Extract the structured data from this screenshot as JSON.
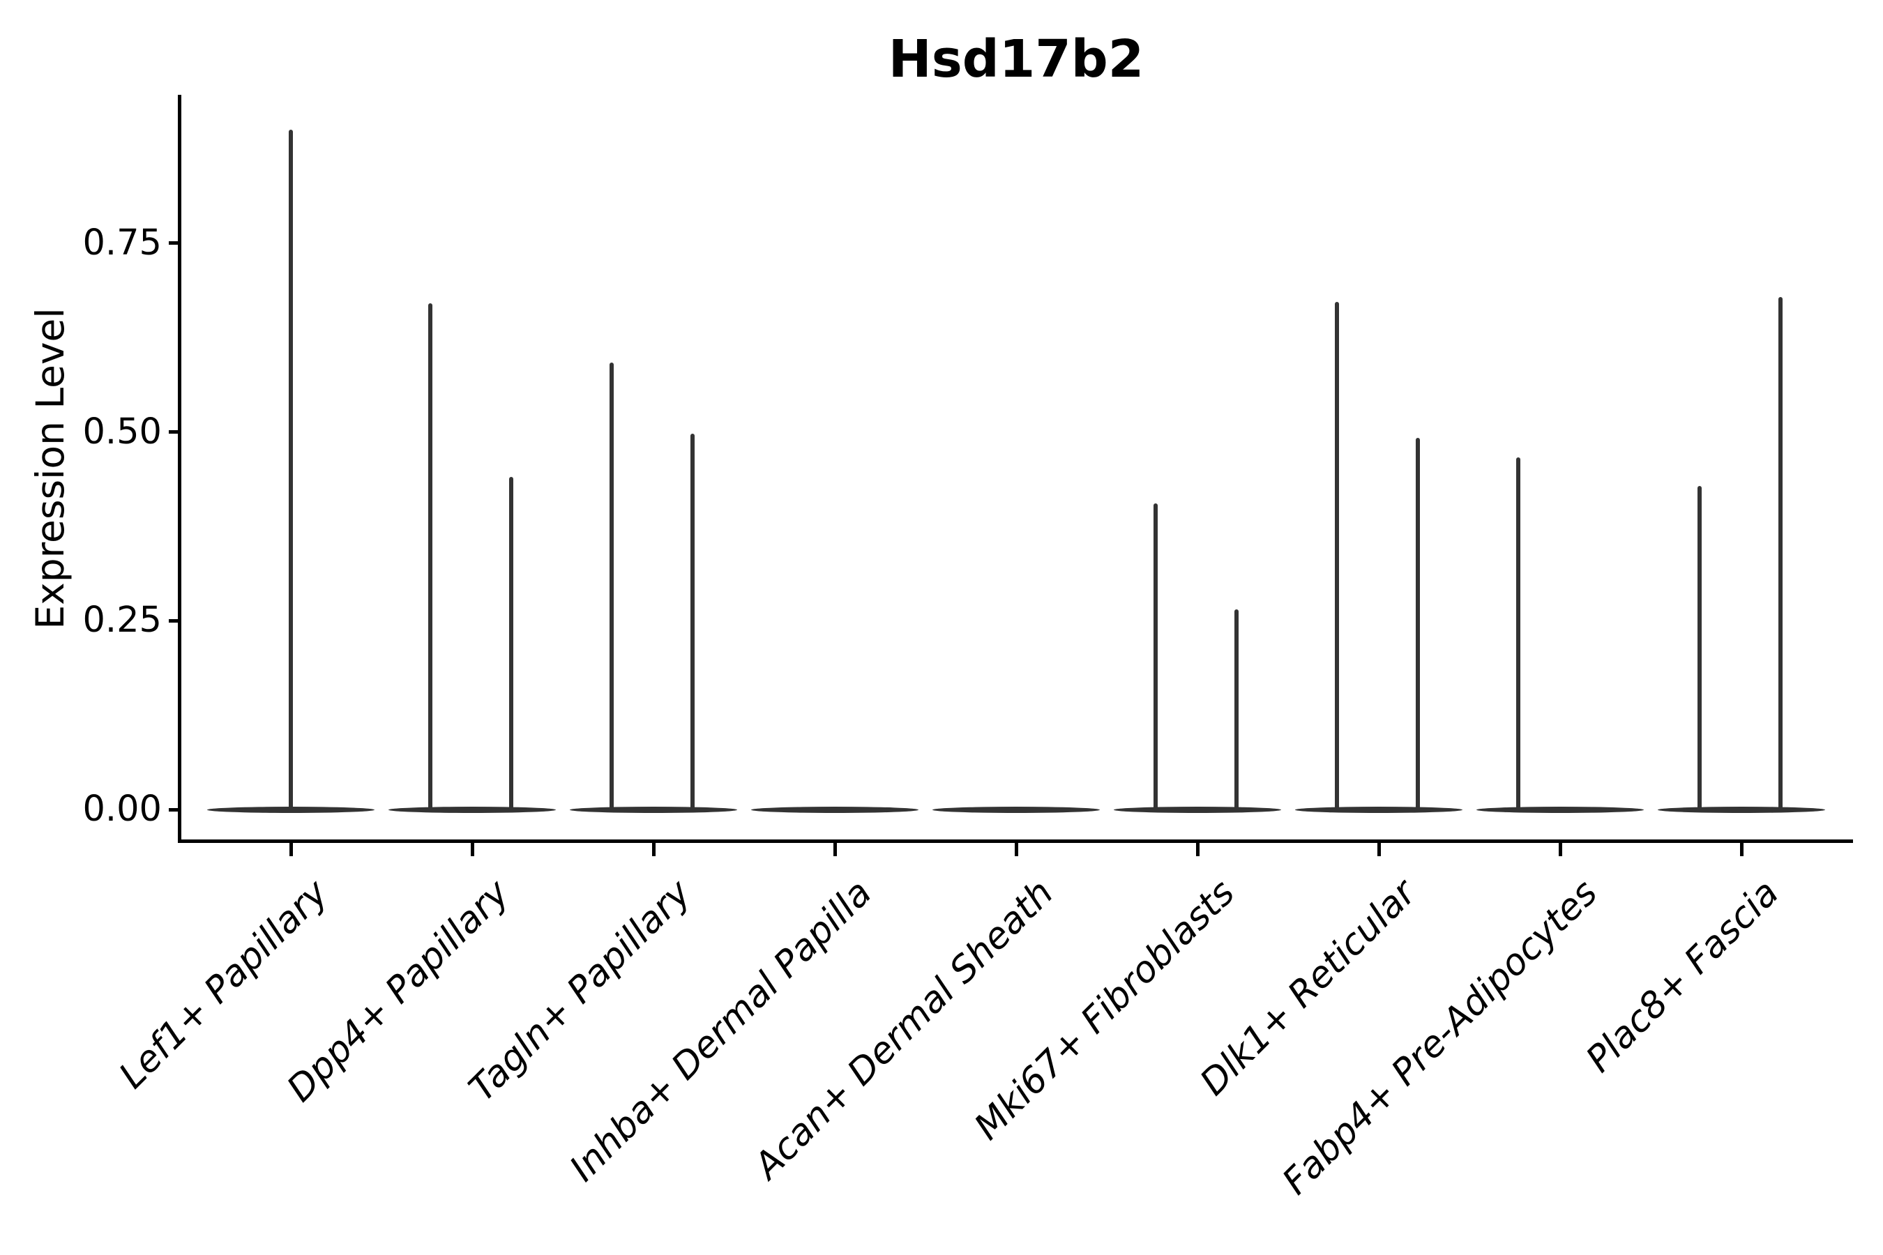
{
  "title": "Hsd17b2",
  "y_axis": {
    "label": "Expression Level",
    "ticks": [
      {
        "label": "0.00",
        "value": 0.0
      },
      {
        "label": "0.25",
        "value": 0.25
      },
      {
        "label": "0.50",
        "value": 0.5
      },
      {
        "label": "0.75",
        "value": 0.75
      }
    ]
  },
  "x_axis": {
    "categories": [
      "Lef1+ Papillary",
      "Dpp4+ Papillary",
      "Tagln+ Papillary",
      "Inhba+ Dermal Papilla",
      "Acan+ Dermal Sheath",
      "Mki67+ Fibroblasts",
      "Dlk1+ Reticular",
      "Fabp4+ Pre-Adipocytes",
      "Plac8+ Fascia"
    ]
  },
  "colors": {
    "violin": "#333333",
    "axis": "#000000",
    "text": "#000000",
    "background": "#ffffff"
  },
  "chart_data": {
    "type": "violin",
    "title": "Hsd17b2",
    "xlabel": "",
    "ylabel": "Expression Level",
    "ylim": [
      -0.045,
      0.947
    ],
    "yticks": [
      0.0,
      0.25,
      0.5,
      0.75
    ],
    "grid": false,
    "legend": "none",
    "description": "Single-cell expression violin plot; each group shows a flat density lens at 0 with thin spikes rising to the maximum expression of rare expressing cells.",
    "categories": [
      "Lef1+ Papillary",
      "Dpp4+ Papillary",
      "Tagln+ Papillary",
      "Inhba+ Dermal Papilla",
      "Acan+ Dermal Sheath",
      "Mki67+ Fibroblasts",
      "Dlk1+ Reticular",
      "Fabp4+ Pre-Adipocytes",
      "Plac8+ Fascia"
    ],
    "violins": [
      {
        "category": "Lef1+ Papillary",
        "baseline_value": 0.0,
        "spikes": [
          {
            "position": "center",
            "peak": 0.9
          }
        ]
      },
      {
        "category": "Dpp4+ Papillary",
        "baseline_value": 0.0,
        "spikes": [
          {
            "position": "left",
            "peak": 0.67
          },
          {
            "position": "right",
            "peak": 0.44
          }
        ]
      },
      {
        "category": "Tagln+ Papillary",
        "baseline_value": 0.0,
        "spikes": [
          {
            "position": "left",
            "peak": 0.592
          },
          {
            "position": "right",
            "peak": 0.498
          }
        ]
      },
      {
        "category": "Inhba+ Dermal Papilla",
        "baseline_value": 0.0,
        "spikes": []
      },
      {
        "category": "Acan+ Dermal Sheath",
        "baseline_value": 0.0,
        "spikes": []
      },
      {
        "category": "Mki67+ Fibroblasts",
        "baseline_value": 0.0,
        "spikes": [
          {
            "position": "left",
            "peak": 0.405
          },
          {
            "position": "right",
            "peak": 0.265
          }
        ]
      },
      {
        "category": "Dlk1+ Reticular",
        "baseline_value": 0.0,
        "spikes": [
          {
            "position": "left",
            "peak": 0.672
          },
          {
            "position": "right",
            "peak": 0.492
          }
        ]
      },
      {
        "category": "Fabp4+ Pre-Adipocytes",
        "baseline_value": 0.0,
        "spikes": [
          {
            "position": "left",
            "peak": 0.466
          }
        ]
      },
      {
        "category": "Plac8+ Fascia",
        "baseline_value": 0.0,
        "spikes": [
          {
            "position": "left",
            "peak": 0.428
          },
          {
            "position": "right",
            "peak": 0.679
          }
        ]
      }
    ]
  }
}
